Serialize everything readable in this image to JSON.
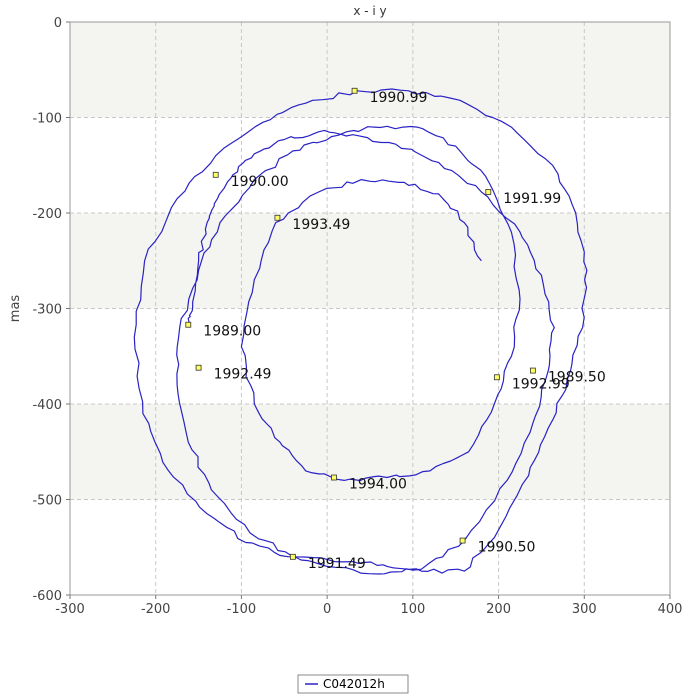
{
  "chart_data": {
    "type": "line",
    "title": "x - i y",
    "xlabel": "",
    "ylabel": "mas",
    "xlim": [
      -300,
      400
    ],
    "ylim": [
      -600,
      0
    ],
    "x_ticks": [
      -300,
      -200,
      -100,
      0,
      100,
      200,
      300,
      400
    ],
    "y_ticks": [
      0,
      -100,
      -200,
      -300,
      -400,
      -500,
      -600
    ],
    "grid": true,
    "legend": "bottom-center",
    "series": [
      {
        "name": "C042012h",
        "color": "#2a22c4",
        "x": [
          -162,
          -157,
          -150,
          -140,
          -128,
          -110,
          -85,
          -50,
          -10,
          30,
          80,
          130,
          180,
          225,
          250,
          265,
          258,
          240,
          210,
          160,
          110,
          60,
          0,
          -45,
          -95,
          -140,
          -185,
          -215,
          -225,
          -213,
          -175,
          -130,
          -75,
          -25,
          35,
          95,
          155,
          215,
          263,
          290,
          303,
          298,
          280,
          258,
          235,
          195,
          160,
          110,
          70,
          30,
          -40,
          -90,
          -135,
          -162,
          -175,
          -172,
          -150,
          -125,
          -85,
          -40,
          5,
          55,
          105,
          150,
          190,
          215,
          225,
          215,
          195,
          165,
          120,
          70,
          20,
          -25,
          -55,
          -85,
          -100,
          -85,
          -60,
          -10,
          40,
          90,
          130,
          160,
          180
        ],
        "y": [
          -317,
          -300,
          -250,
          -210,
          -185,
          -160,
          -138,
          -123,
          -115,
          -118,
          -128,
          -147,
          -178,
          -220,
          -265,
          -320,
          -365,
          -420,
          -480,
          -543,
          -573,
          -578,
          -570,
          -560,
          -545,
          -515,
          -470,
          -410,
          -330,
          -250,
          -185,
          -140,
          -105,
          -85,
          -72,
          -72,
          -82,
          -110,
          -150,
          -200,
          -260,
          -320,
          -375,
          -425,
          -475,
          -540,
          -575,
          -575,
          -570,
          -565,
          -560,
          -535,
          -490,
          -440,
          -380,
          -320,
          -260,
          -210,
          -165,
          -135,
          -120,
          -110,
          -110,
          -130,
          -170,
          -220,
          -290,
          -350,
          -400,
          -450,
          -470,
          -477,
          -480,
          -470,
          -440,
          -400,
          -340,
          -270,
          -210,
          -178,
          -165,
          -168,
          -180,
          -210,
          -250
        ]
      }
    ],
    "annotations": [
      {
        "label": "1989.00",
        "x": -162,
        "y": -317
      },
      {
        "label": "1989.50",
        "x": 240,
        "y": -365
      },
      {
        "label": "1990.00",
        "x": -130,
        "y": -160
      },
      {
        "label": "1990.50",
        "x": 158,
        "y": -543
      },
      {
        "label": "1990.99",
        "x": 32,
        "y": -72
      },
      {
        "label": "1991.49",
        "x": -40,
        "y": -560
      },
      {
        "label": "1991.99",
        "x": 188,
        "y": -178
      },
      {
        "label": "1992.49",
        "x": -150,
        "y": -362
      },
      {
        "label": "1992.99",
        "x": 198,
        "y": -372
      },
      {
        "label": "1993.49",
        "x": -58,
        "y": -205
      },
      {
        "label": "1994.00",
        "x": 8,
        "y": -477
      }
    ]
  }
}
